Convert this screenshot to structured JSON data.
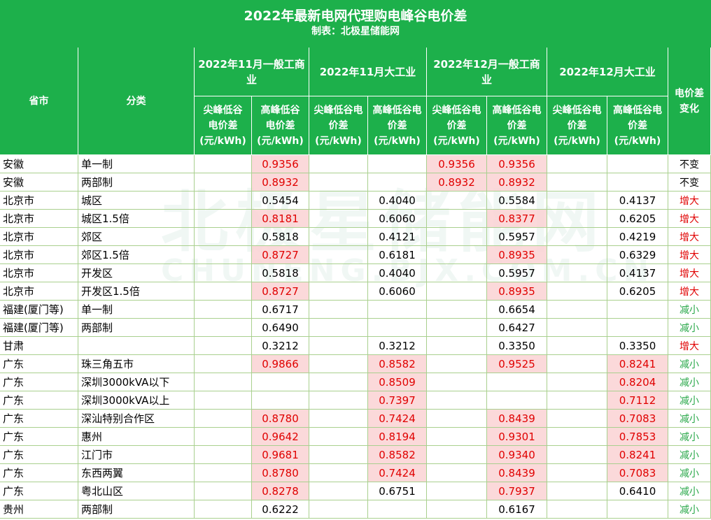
{
  "header": {
    "title": "2022年最新电网代理购电峰谷电价差",
    "subtitle": "制表：北极星储能网"
  },
  "watermark": [
    "北极星储能网",
    "CHUNENG.BJX.COM.CN"
  ],
  "table": {
    "columns": {
      "province": "省市",
      "category": "分类",
      "groups": [
        "2022年11月一般工商业",
        "2022年11月大工业",
        "2022年12月一般工商业",
        "2022年12月大工业"
      ],
      "change": "电价差变化"
    },
    "subheaders": [
      "尖峰低谷电价差(元/kWh)",
      "高峰低谷电价差(元/kWh)",
      "尖峰低谷电价差(元/kWh)",
      "高峰低谷电价差(元/kWh)",
      "尖峰低谷电价差(元/kWh)",
      "高峰低谷电价差(元/kWh)",
      "尖峰低谷电价差(元/kWh)",
      "高峰低谷电价差(元/kWh)"
    ],
    "rows": [
      [
        "安徽",
        "单一制",
        null,
        "0.9356",
        null,
        null,
        "0.9356",
        "0.9356",
        null,
        null,
        "不变"
      ],
      [
        "安徽",
        "两部制",
        null,
        "0.8932",
        null,
        null,
        "0.8932",
        "0.8932",
        null,
        null,
        "不变"
      ],
      [
        "北京市",
        "城区",
        null,
        "0.5454",
        null,
        "0.4040",
        null,
        "0.5584",
        null,
        "0.4137",
        "增大"
      ],
      [
        "北京市",
        "城区1.5倍",
        null,
        "0.8181",
        null,
        "0.6060",
        null,
        "0.8377",
        null,
        "0.6205",
        "增大"
      ],
      [
        "北京市",
        "郊区",
        null,
        "0.5818",
        null,
        "0.4121",
        null,
        "0.5957",
        null,
        "0.4219",
        "增大"
      ],
      [
        "北京市",
        "郊区1.5倍",
        null,
        "0.8727",
        null,
        "0.6181",
        null,
        "0.8935",
        null,
        "0.6329",
        "增大"
      ],
      [
        "北京市",
        "开发区",
        null,
        "0.5818",
        null,
        "0.4040",
        null,
        "0.5957",
        null,
        "0.4137",
        "增大"
      ],
      [
        "北京市",
        "开发区1.5倍",
        null,
        "0.8727",
        null,
        "0.6060",
        null,
        "0.8935",
        null,
        "0.6205",
        "增大"
      ],
      [
        "福建(厦门等)",
        "单一制",
        null,
        "0.6717",
        null,
        null,
        null,
        "0.6654",
        null,
        null,
        "减小"
      ],
      [
        "福建(厦门等)",
        "两部制",
        null,
        "0.6490",
        null,
        null,
        null,
        "0.6427",
        null,
        null,
        "减小"
      ],
      [
        "甘肃",
        null,
        null,
        "0.3212",
        null,
        "0.3212",
        null,
        "0.3350",
        null,
        "0.3350",
        "增大"
      ],
      [
        "广东",
        "珠三角五市",
        null,
        "0.9866",
        null,
        "0.8582",
        null,
        "0.9525",
        null,
        "0.8241",
        "减小"
      ],
      [
        "广东",
        "深圳3000kVA以下",
        null,
        null,
        null,
        "0.8509",
        null,
        null,
        null,
        "0.8204",
        "减小"
      ],
      [
        "广东",
        "深圳3000kVA以上",
        null,
        null,
        null,
        "0.7397",
        null,
        null,
        null,
        "0.7112",
        "减小"
      ],
      [
        "广东",
        "深汕特别合作区",
        null,
        "0.8780",
        null,
        "0.7424",
        null,
        "0.8439",
        null,
        "0.7083",
        "减小"
      ],
      [
        "广东",
        "惠州",
        null,
        "0.9642",
        null,
        "0.8194",
        null,
        "0.9301",
        null,
        "0.7853",
        "减小"
      ],
      [
        "广东",
        "江门市",
        null,
        "0.9681",
        null,
        "0.8582",
        null,
        "0.9340",
        null,
        "0.8241",
        "减小"
      ],
      [
        "广东",
        "东西两翼",
        null,
        "0.8780",
        null,
        "0.7424",
        null,
        "0.8439",
        null,
        "0.7083",
        "减小"
      ],
      [
        "广东",
        "粤北山区",
        null,
        "0.8278",
        null,
        "0.6751",
        null,
        "0.7937",
        null,
        "0.6410",
        "减小"
      ],
      [
        "贵州",
        "两部制",
        null,
        "0.6222",
        null,
        null,
        null,
        "0.6167",
        null,
        null,
        "减小"
      ]
    ]
  }
}
